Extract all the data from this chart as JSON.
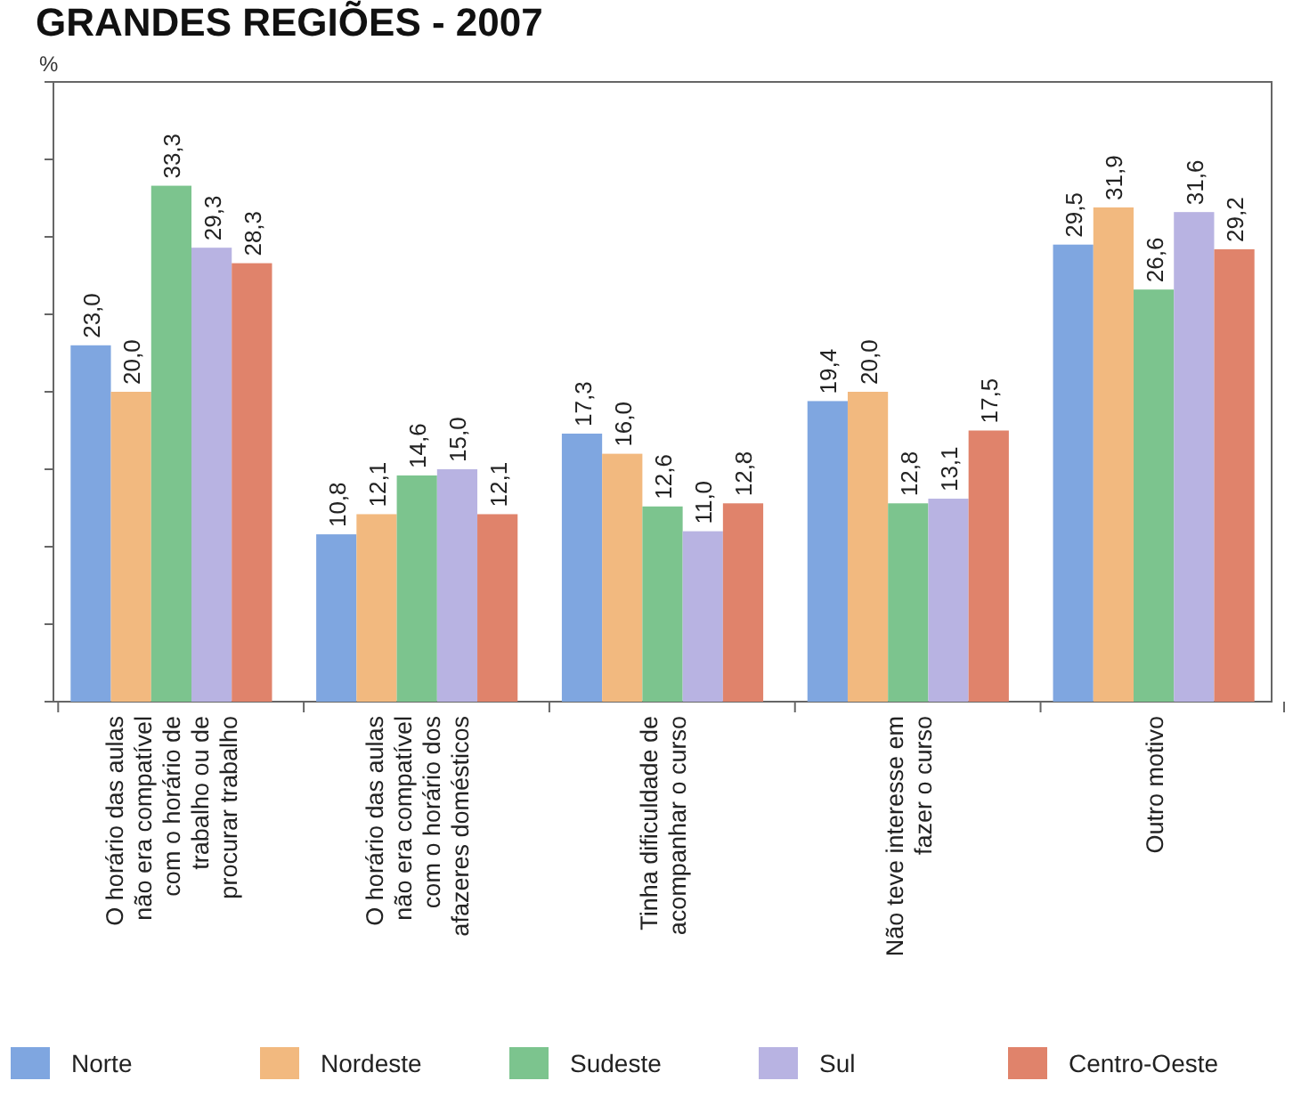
{
  "chart_data": {
    "type": "bar",
    "title": "GRANDES REGIÕES - 2007",
    "ylabel": "%",
    "categories": [
      "O horário das aulas não era compatível com o horário de trabalho ou de procurar trabalho",
      "O horário das aulas não era compatível com o horário dos afazeres domésticos",
      "Tinha dificuldade de acompanhar o curso",
      "Não teve interesse em fazer o curso",
      "Outro motivo"
    ],
    "series": [
      {
        "name": "Norte",
        "color": "#7fa6e0",
        "values": [
          23.0,
          10.8,
          17.3,
          19.4,
          29.5
        ],
        "value_labels": [
          "23,0",
          "10,8",
          "17,3",
          "19,4",
          "29,5"
        ]
      },
      {
        "name": "Nordeste",
        "color": "#f2b97f",
        "values": [
          20.0,
          12.1,
          16.0,
          20.0,
          31.9
        ],
        "value_labels": [
          "20,0",
          "12,1",
          "16,0",
          "20,0",
          "31,9"
        ]
      },
      {
        "name": "Sudeste",
        "color": "#7cc48e",
        "values": [
          33.3,
          14.6,
          12.6,
          12.8,
          26.6
        ],
        "value_labels": [
          "33,3",
          "14,6",
          "12,6",
          "12,8",
          "26,6"
        ]
      },
      {
        "name": "Sul",
        "color": "#b8b3e2",
        "values": [
          29.3,
          15.0,
          11.0,
          13.1,
          31.6
        ],
        "value_labels": [
          "29,3",
          "15,0",
          "11,0",
          "13,1",
          "31,6"
        ]
      },
      {
        "name": "Centro-Oeste",
        "color": "#e0836b",
        "values": [
          28.3,
          12.1,
          12.8,
          17.5,
          29.2
        ],
        "value_labels": [
          "28,3",
          "12,1",
          "12,8",
          "17,5",
          "29,2"
        ]
      }
    ],
    "ylim": [
      0,
      40
    ],
    "yticks": [
      {
        "value": 0,
        "label": null
      },
      {
        "value": 5,
        "label": null
      },
      {
        "value": 10,
        "label": null
      },
      {
        "value": 15,
        "label": null
      },
      {
        "value": 20,
        "label": null
      },
      {
        "value": 25,
        "label": null
      },
      {
        "value": 30,
        "label": null
      },
      {
        "value": 35,
        "label": null
      },
      {
        "value": 40,
        "label": null
      }
    ],
    "tick_labels": "x",
    "grid": false,
    "legend": "bottom"
  }
}
